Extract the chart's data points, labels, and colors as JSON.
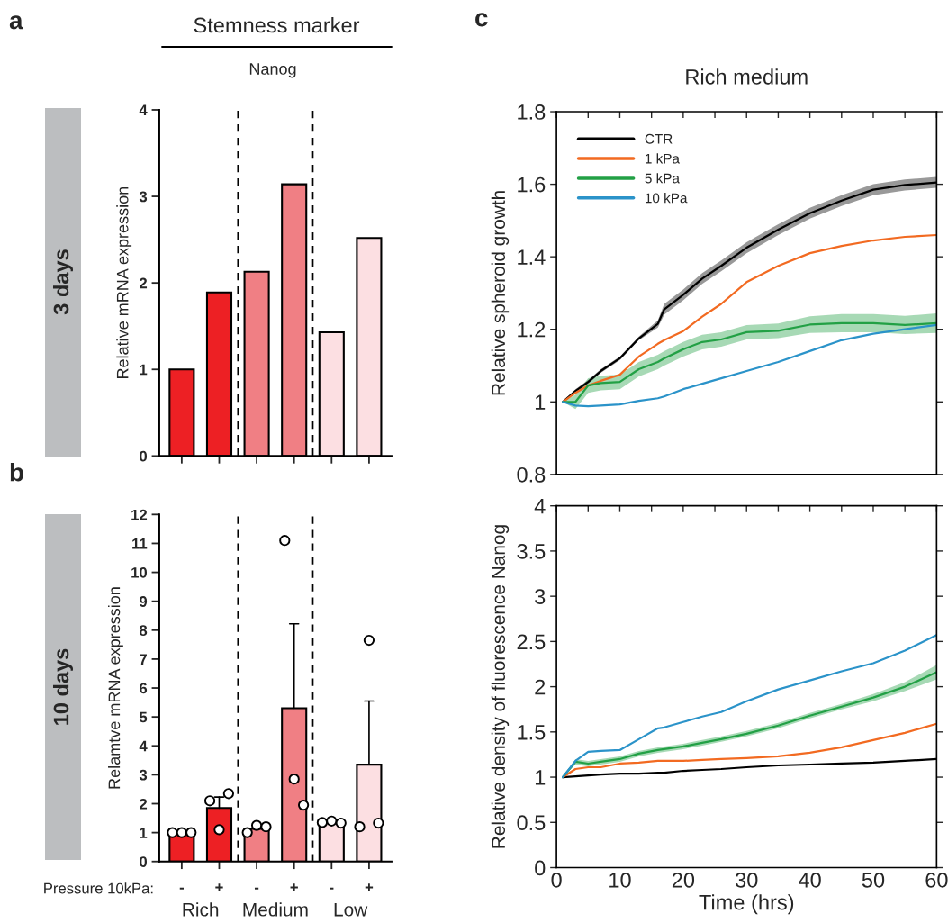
{
  "chart_data": [
    {
      "type": "bar",
      "title": "Stemness marker",
      "subtitle": "Nanog",
      "ylabel": "Relative mRNA expression",
      "annotations": [
        "a",
        "3 days"
      ],
      "categories": [
        null,
        null,
        null,
        null,
        null,
        null
      ],
      "values": [
        1.0,
        1.89,
        2.13,
        3.14,
        1.43,
        2.52
      ],
      "colors": [
        "#ed2024",
        "#ed2024",
        "#f07f84",
        "#f07f84",
        "#fcdfe2",
        "#fcdfe2"
      ],
      "ylim": [
        0,
        4
      ],
      "yticks": [
        0,
        1,
        2,
        3,
        4
      ],
      "tick_labels": "y"
    },
    {
      "type": "bar",
      "ylabel": "Relamtve mRNA expression",
      "annotations": [
        "b",
        "10 days",
        "Pressure 10kPa:",
        "Rich",
        "Medium",
        "Low"
      ],
      "categories": [
        "-",
        "+",
        "-",
        "+",
        "-",
        "+"
      ],
      "values": [
        1.0,
        1.85,
        1.13,
        5.3,
        1.33,
        3.35
      ],
      "colors": [
        "#ed2024",
        "#ed2024",
        "#f07f84",
        "#f07f84",
        "#fcdfe2",
        "#fcdfe2"
      ],
      "errors": [
        null,
        [
          1.85,
          2.23
        ],
        null,
        [
          5.3,
          8.22
        ],
        null,
        [
          3.35,
          5.55
        ]
      ],
      "ylim": [
        0,
        12
      ],
      "yticks": [
        0,
        1,
        2,
        3,
        4,
        5,
        6,
        7,
        8,
        9,
        10,
        11,
        12
      ],
      "series": [
        {
          "type": "scatter",
          "marker": "circle",
          "color": "#000000",
          "values": [
            1.0,
            2.1,
            1.0,
            11.1,
            1.35,
            1.2
          ]
        },
        {
          "type": "scatter",
          "marker": "circle",
          "color": "#000000",
          "values": [
            1.0,
            1.1,
            1.25,
            2.85,
            1.4,
            7.65
          ]
        },
        {
          "type": "scatter",
          "marker": "circle",
          "color": "#000000",
          "values": [
            1.0,
            2.35,
            1.2,
            1.95,
            1.33,
            1.33
          ]
        }
      ]
    },
    {
      "type": "line",
      "title": "Rich medium",
      "ylabel": "Relative spheroid growth",
      "annotations": [
        "c"
      ],
      "x": [
        1,
        3,
        5,
        7,
        10,
        13,
        16,
        17,
        20,
        23,
        26,
        30,
        35,
        40,
        45,
        50,
        55,
        60
      ],
      "xlim": [
        0,
        60
      ],
      "xticks": [
        0,
        {
          "value": 5,
          "label": null
        },
        10,
        {
          "value": 15,
          "label": null
        },
        20,
        {
          "value": 25,
          "label": null
        },
        30,
        {
          "value": 35,
          "label": null
        },
        40,
        {
          "value": 45,
          "label": null
        },
        50,
        {
          "value": 55,
          "label": null
        },
        60
      ],
      "ylim": [
        0.8,
        1.8
      ],
      "yticks": [
        0.8,
        1,
        1.2,
        1.4,
        1.6,
        1.8
      ],
      "tick_labels": "y",
      "legend": "top left",
      "series": [
        {
          "name": "CTR",
          "color": "#000000",
          "values": [
            1.0,
            1.03,
            1.055,
            1.085,
            1.12,
            1.175,
            1.215,
            1.255,
            1.295,
            1.34,
            1.375,
            1.425,
            1.475,
            1.52,
            1.555,
            1.585,
            1.598,
            1.605
          ],
          "lower": [
            1.0,
            1.025,
            1.05,
            1.08,
            1.115,
            1.17,
            1.205,
            1.24,
            1.28,
            1.325,
            1.36,
            1.41,
            1.46,
            1.505,
            1.54,
            1.57,
            1.583,
            1.59
          ],
          "upper": [
            1.0,
            1.035,
            1.06,
            1.09,
            1.125,
            1.18,
            1.225,
            1.27,
            1.31,
            1.355,
            1.39,
            1.44,
            1.49,
            1.535,
            1.57,
            1.6,
            1.613,
            1.62
          ]
        },
        {
          "name": "1 kPa",
          "color": "#f26a21",
          "values": [
            1.0,
            1.025,
            1.045,
            1.058,
            1.075,
            1.125,
            1.16,
            1.17,
            1.195,
            1.235,
            1.27,
            1.33,
            1.375,
            1.41,
            1.43,
            1.445,
            1.455,
            1.46
          ]
        },
        {
          "name": "5 kPa",
          "color": "#22a045",
          "values": [
            1.0,
            1.0,
            1.045,
            1.052,
            1.055,
            1.09,
            1.11,
            1.12,
            1.145,
            1.165,
            1.172,
            1.192,
            1.196,
            1.213,
            1.217,
            1.217,
            1.212,
            1.217
          ],
          "lower": [
            1.0,
            0.98,
            1.025,
            1.032,
            1.035,
            1.07,
            1.09,
            1.1,
            1.125,
            1.145,
            1.152,
            1.172,
            1.176,
            1.19,
            1.192,
            1.192,
            1.187,
            1.19
          ],
          "upper": [
            1.0,
            1.02,
            1.065,
            1.072,
            1.075,
            1.11,
            1.13,
            1.14,
            1.165,
            1.185,
            1.192,
            1.212,
            1.216,
            1.236,
            1.242,
            1.242,
            1.237,
            1.244
          ]
        },
        {
          "name": "10 kPa",
          "color": "#2b93c9",
          "values": [
            1.0,
            0.99,
            0.988,
            0.99,
            0.993,
            1.003,
            1.01,
            1.015,
            1.035,
            1.05,
            1.065,
            1.085,
            1.11,
            1.14,
            1.17,
            1.188,
            1.2,
            1.212
          ]
        }
      ]
    },
    {
      "type": "line",
      "xlabel": "Time (hrs)",
      "ylabel": "Relative density of fluorescence Nanog",
      "x": [
        1,
        3,
        5,
        7,
        10,
        13,
        16,
        17,
        20,
        23,
        26,
        30,
        35,
        40,
        45,
        50,
        55,
        60
      ],
      "xlim": [
        0,
        60
      ],
      "xticks": [
        0,
        {
          "value": 5,
          "label": null
        },
        10,
        {
          "value": 15,
          "label": null
        },
        20,
        {
          "value": 25,
          "label": null
        },
        30,
        {
          "value": 35,
          "label": null
        },
        40,
        {
          "value": 45,
          "label": null
        },
        50,
        {
          "value": 55,
          "label": null
        },
        60
      ],
      "ylim": [
        0,
        4
      ],
      "yticks": [
        0,
        0.5,
        1,
        1.5,
        2,
        2.5,
        3,
        3.5,
        4
      ],
      "series": [
        {
          "color": "#000000",
          "values": [
            1.0,
            1.01,
            1.02,
            1.03,
            1.04,
            1.04,
            1.05,
            1.05,
            1.07,
            1.08,
            1.09,
            1.11,
            1.13,
            1.14,
            1.15,
            1.16,
            1.18,
            1.2
          ]
        },
        {
          "color": "#f26a21",
          "values": [
            1.0,
            1.09,
            1.11,
            1.11,
            1.15,
            1.16,
            1.18,
            1.18,
            1.18,
            1.19,
            1.2,
            1.21,
            1.23,
            1.27,
            1.33,
            1.41,
            1.49,
            1.59
          ]
        },
        {
          "color": "#22a045",
          "values": [
            1.0,
            1.17,
            1.15,
            1.17,
            1.2,
            1.26,
            1.3,
            1.31,
            1.34,
            1.38,
            1.42,
            1.48,
            1.57,
            1.68,
            1.78,
            1.88,
            2.0,
            2.16
          ],
          "lower": [
            1.0,
            1.14,
            1.12,
            1.14,
            1.17,
            1.23,
            1.27,
            1.28,
            1.31,
            1.35,
            1.39,
            1.45,
            1.54,
            1.65,
            1.75,
            1.84,
            1.95,
            2.08
          ],
          "upper": [
            1.0,
            1.2,
            1.18,
            1.2,
            1.23,
            1.29,
            1.33,
            1.34,
            1.37,
            1.41,
            1.45,
            1.51,
            1.6,
            1.71,
            1.81,
            1.92,
            2.05,
            2.24
          ]
        },
        {
          "color": "#2b93c9",
          "values": [
            1.0,
            1.18,
            1.28,
            1.29,
            1.3,
            1.42,
            1.54,
            1.55,
            1.61,
            1.67,
            1.72,
            1.84,
            1.97,
            2.07,
            2.17,
            2.26,
            2.4,
            2.57
          ]
        }
      ]
    }
  ]
}
